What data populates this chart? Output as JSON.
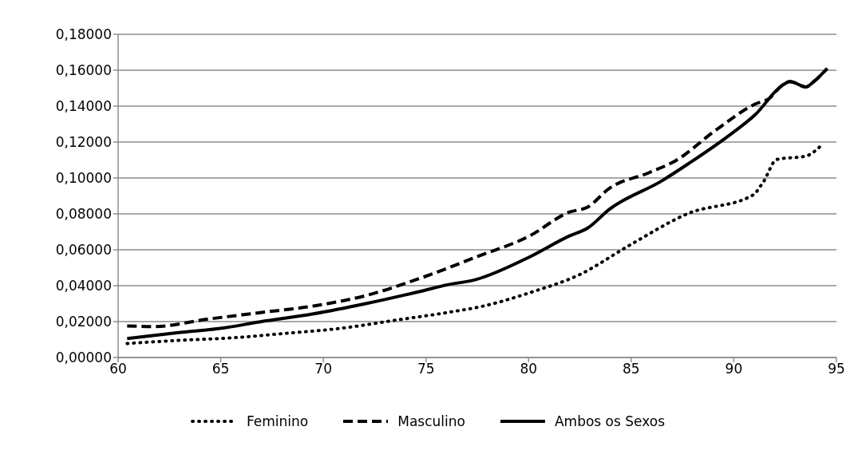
{
  "chart_data": {
    "type": "line",
    "legend": "bottom",
    "grid": "y",
    "marker": "none",
    "xlim": [
      60,
      95
    ],
    "xticks": [
      60,
      65,
      70,
      75,
      80,
      85,
      90,
      95
    ],
    "ylim": [
      0,
      0.18
    ],
    "yticks": [
      {
        "value": 0,
        "label": "0,00000"
      },
      {
        "value": 0.02,
        "label": "0,02000"
      },
      {
        "value": 0.04,
        "label": "0,04000"
      },
      {
        "value": 0.06,
        "label": "0,06000"
      },
      {
        "value": 0.08,
        "label": "0,08000"
      },
      {
        "value": 0.1,
        "label": "0,10000"
      },
      {
        "value": 0.12,
        "label": "0,12000"
      },
      {
        "value": 0.14,
        "label": "0,14000"
      },
      {
        "value": 0.16,
        "label": "0,16000"
      },
      {
        "value": 0.18,
        "label": "0,18000"
      }
    ],
    "series": [
      {
        "name": "Feminino",
        "color": "#000000",
        "line_style": "dotted",
        "x": [
          60.44,
          63.04,
          65.63,
          68.22,
          70.82,
          73.41,
          76.0,
          77.82,
          80.03,
          82.51,
          84.92,
          87.75,
          90.92,
          91.44,
          92.09,
          93.51,
          94.29
        ],
        "values": [
          0.0078,
          0.0096,
          0.011,
          0.0135,
          0.0162,
          0.0206,
          0.025,
          0.0287,
          0.036,
          0.0463,
          0.0625,
          0.0801,
          0.0904,
          0.0978,
          0.1103,
          0.1122,
          0.1184
        ]
      },
      {
        "name": "Masculino",
        "color": "#000000",
        "line_style": "dashed",
        "x": [
          60.44,
          61.74,
          64.33,
          66.93,
          69.52,
          72.11,
          74.71,
          77.43,
          80.03,
          81.97,
          82.88,
          83.92,
          85.86,
          87.16,
          89.11,
          91.05,
          91.7,
          92.35,
          92.74,
          93.51,
          93.9,
          94.55
        ],
        "values": [
          0.0176,
          0.0172,
          0.0213,
          0.025,
          0.0287,
          0.0346,
          0.0441,
          0.0559,
          0.0676,
          0.0809,
          0.0838,
          0.0941,
          0.1029,
          0.1096,
          0.1265,
          0.1412,
          0.1441,
          0.1515,
          0.1537,
          0.1507,
          0.1537,
          0.161
        ]
      },
      {
        "name": "Ambos os Sexos",
        "color": "#000000",
        "line_style": "solid",
        "x": [
          60.44,
          63.04,
          64.98,
          66.93,
          69.52,
          72.11,
          74.71,
          76.0,
          77.43,
          80.03,
          81.97,
          82.88,
          83.92,
          86.51,
          87.81,
          89.75,
          91.05,
          92.35,
          92.74,
          93.51,
          93.9,
          94.55
        ],
        "values": [
          0.0106,
          0.014,
          0.0162,
          0.0199,
          0.0243,
          0.0301,
          0.0368,
          0.0404,
          0.0434,
          0.0559,
          0.0676,
          0.0721,
          0.0824,
          0.0985,
          0.1081,
          0.1235,
          0.1353,
          0.1515,
          0.1537,
          0.1507,
          0.1537,
          0.161
        ]
      }
    ]
  }
}
